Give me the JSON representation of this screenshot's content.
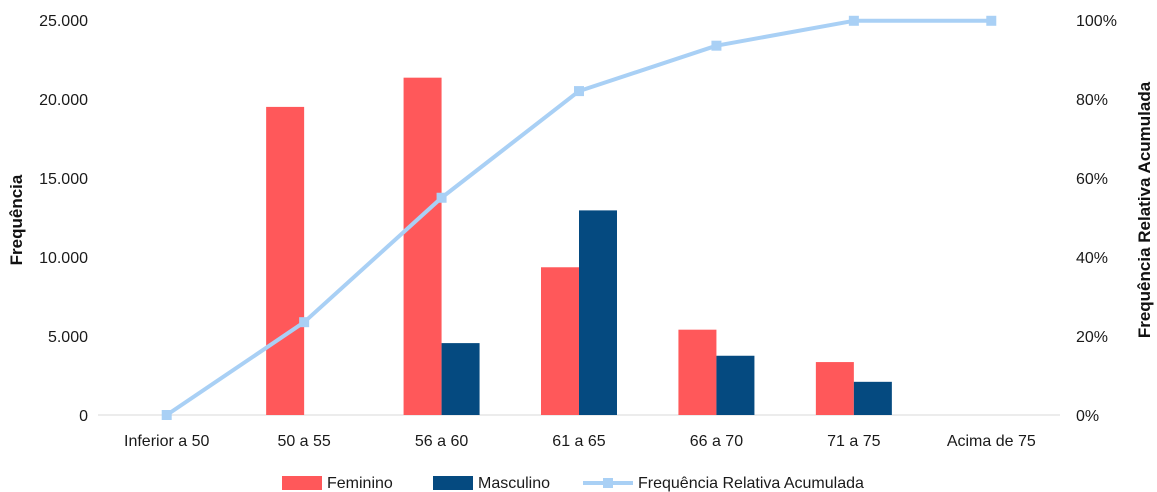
{
  "chart_data": {
    "type": "bar",
    "categories": [
      "Inferior a 50",
      "50 a 55",
      "56 a 60",
      "61 a 65",
      "66 a 70",
      "71 a 75",
      "Acima de 75"
    ],
    "series": [
      {
        "name": "Feminino",
        "type": "bar",
        "axis": "left",
        "color": "#ff585a",
        "values": [
          0,
          19500,
          21350,
          9350,
          5400,
          3350,
          0
        ]
      },
      {
        "name": "Masculino",
        "type": "bar",
        "axis": "left",
        "color": "#054a80",
        "values": [
          0,
          0,
          4550,
          12950,
          3750,
          2100,
          0
        ]
      },
      {
        "name": "Frequência Relativa Acumulada",
        "type": "line",
        "axis": "right",
        "color": "#a9d0f5",
        "values": [
          0,
          23.5,
          55,
          82,
          93.5,
          99.8,
          99.8
        ]
      }
    ],
    "ylabel": "Frequência",
    "y2label": "Frequência Relativa Acumulada",
    "ylim": [
      0,
      25000
    ],
    "y2lim": [
      0,
      100
    ],
    "yticks": [
      "0",
      "5.000",
      "10.000",
      "15.000",
      "20.000",
      "25.000"
    ],
    "y2ticks": [
      "0%",
      "20%",
      "40%",
      "60%",
      "80%",
      "100%"
    ],
    "grid": false,
    "legend_position": "bottom"
  }
}
